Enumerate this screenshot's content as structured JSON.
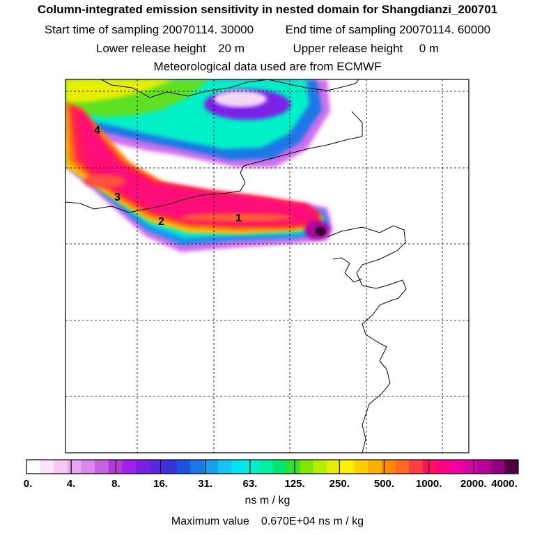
{
  "title": "Column-integrated emission sensitivity in nested domain for Shangdianzi_200701",
  "sampling": {
    "start_label": "Start time of sampling",
    "start_value": "20070114. 30000",
    "end_label": "End time of sampling",
    "end_value": "20070114. 60000"
  },
  "release": {
    "lower_label": "Lower release height",
    "lower_value": "20 m",
    "upper_label": "Upper release height",
    "upper_value": "0 m"
  },
  "met_line": "Meteorological data used are from ECMWF",
  "plume_labels": [
    "1",
    "2",
    "3",
    "4"
  ],
  "colorbar": {
    "ticks": [
      "0.",
      "4.",
      "8.",
      "16.",
      "31.",
      "63.",
      "125.",
      "250.",
      "500.",
      "1000.",
      "2000.",
      "4000."
    ],
    "units": "ns m / kg",
    "colors": [
      "#ffffff",
      "#fbe3fb",
      "#f6c8f6",
      "#eaa6f0",
      "#d98ae8",
      "#c564e0",
      "#b43ad8",
      "#a020f0",
      "#7a20e6",
      "#5a28e0",
      "#3a30dc",
      "#2050e0",
      "#1a78e6",
      "#18a0ee",
      "#18c4f4",
      "#00e6f0",
      "#00f0d0",
      "#00f0a8",
      "#00e870",
      "#30e030",
      "#80e800",
      "#b8ee00",
      "#e8ee00",
      "#fff000",
      "#ffd000",
      "#ffb000",
      "#ff8c00",
      "#ff6a20",
      "#ff4040",
      "#ff1060",
      "#ff0080",
      "#f000a0",
      "#d800a8",
      "#b80098",
      "#900080",
      "#500040"
    ]
  },
  "max_line": {
    "label": "Maximum value",
    "value": "0.670E+04",
    "units": "ns m / kg"
  }
}
